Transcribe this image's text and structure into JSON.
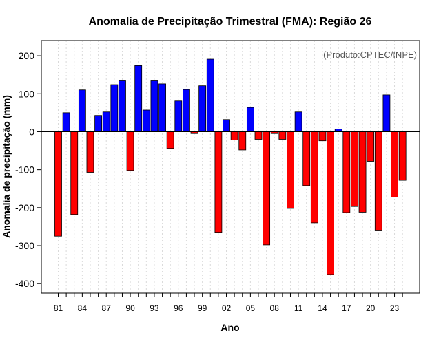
{
  "chart_data": {
    "type": "bar",
    "title": "Anomalia de Precipitação Trimestral (FMA): Região 26",
    "xlabel": "Ano",
    "ylabel": "Anomalia de precipitação (mm)",
    "annotation": "(Produto:CPTEC/INPE)",
    "ylim": [
      -425,
      240
    ],
    "yticks": [
      -400,
      -300,
      -200,
      -100,
      0,
      100,
      200
    ],
    "grid": true,
    "positive_color": "#0000ff",
    "negative_color": "#ff0000",
    "categories": [
      "1981",
      "1982",
      "1983",
      "1984",
      "1985",
      "1986",
      "1987",
      "1988",
      "1989",
      "1990",
      "1991",
      "1992",
      "1993",
      "1994",
      "1995",
      "1996",
      "1997",
      "1998",
      "1999",
      "2000",
      "2001",
      "2002",
      "2003",
      "2004",
      "2005",
      "2006",
      "2007",
      "2008",
      "2009",
      "2010",
      "2011",
      "2012",
      "2013",
      "2014",
      "2015",
      "2016",
      "2017",
      "2018",
      "2019",
      "2020",
      "2021",
      "2022",
      "2023",
      "2024"
    ],
    "tick_labels": [
      "81",
      "84",
      "87",
      "90",
      "93",
      "96",
      "99",
      "02",
      "05",
      "08",
      "11",
      "14",
      "17",
      "20",
      "23"
    ],
    "tick_years": [
      "1981",
      "1984",
      "1987",
      "1990",
      "1993",
      "1996",
      "1999",
      "2002",
      "2005",
      "2008",
      "2011",
      "2014",
      "2017",
      "2020",
      "2023"
    ],
    "values": [
      -275,
      50,
      -218,
      110,
      -107,
      43,
      52,
      124,
      134,
      -102,
      174,
      57,
      134,
      126,
      -44,
      81,
      111,
      -5,
      121,
      191,
      -265,
      32,
      -22,
      -48,
      64,
      -20,
      -298,
      -5,
      -20,
      -202,
      52,
      -142,
      -240,
      -24,
      -376,
      7,
      -213,
      -197,
      -212,
      -78,
      -261,
      97,
      -172,
      -128
    ]
  }
}
